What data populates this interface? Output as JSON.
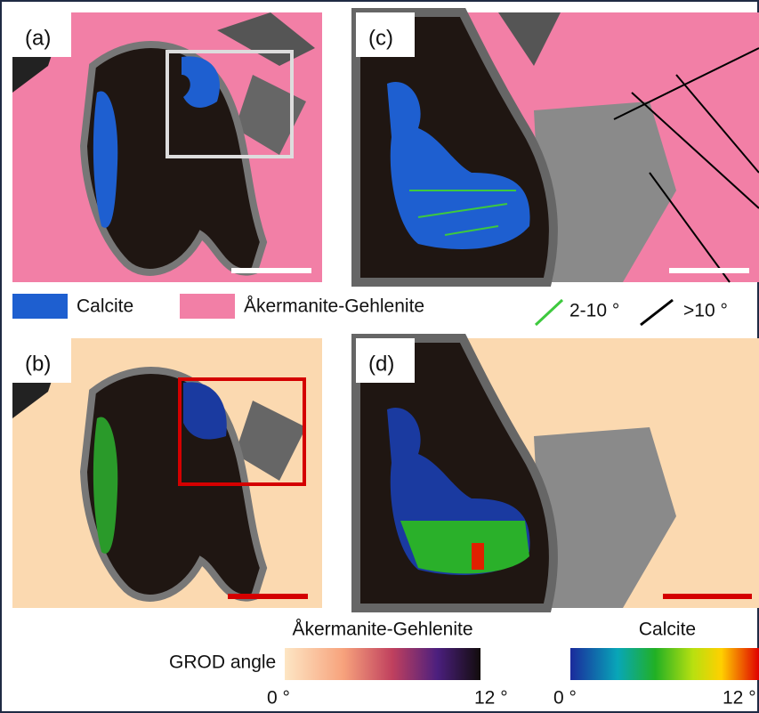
{
  "panels": [
    {
      "label": "(a)"
    },
    {
      "label": "(b)"
    },
    {
      "label": "(c)"
    },
    {
      "label": "(d)"
    }
  ],
  "legend": {
    "phases": [
      {
        "name": "Calcite"
      },
      {
        "name": "Åkermanite-Gehlenite"
      }
    ],
    "boundaries": [
      {
        "label": "2-10 °"
      },
      {
        "label": ">10 °"
      }
    ]
  },
  "colorbars": {
    "title": "GROD angle",
    "bars": [
      {
        "name": "Åkermanite-Gehlenite",
        "min_label": "0 °",
        "max_label": "12 °"
      },
      {
        "name": "Calcite",
        "min_label": "0 °",
        "max_label": "12 °"
      }
    ]
  }
}
